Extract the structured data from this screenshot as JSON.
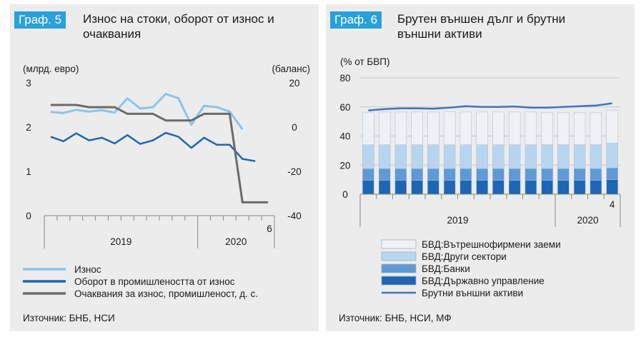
{
  "chart_data": [
    {
      "type": "line",
      "badge": "Граф. 5",
      "title_lines": [
        "Износ на стоки, оборот от износ и",
        "очаквания"
      ],
      "y_left_label": "(млрд. евро)",
      "y_right_label": "(баланс)",
      "y_left_ticks": [
        "3",
        "2",
        "1",
        "0"
      ],
      "y_right_ticks": [
        "20",
        "0",
        "-20",
        "-40"
      ],
      "ylim_left": [
        0,
        3
      ],
      "ylim_right": [
        -40,
        20
      ],
      "x_labels": [
        "2019",
        "2020"
      ],
      "x_last_label": "6",
      "n_periods": 18,
      "series": [
        {
          "name": "Износ",
          "axis": "left",
          "color": "#8cc3ea",
          "values": [
            2.34,
            2.32,
            2.39,
            2.35,
            2.38,
            2.33,
            2.65,
            2.42,
            2.45,
            2.75,
            2.65,
            2.05,
            2.48,
            2.45,
            2.35,
            1.95
          ]
        },
        {
          "name": "Оборот в промишлеността от износ",
          "axis": "left",
          "color": "#1f65b3",
          "values": [
            1.78,
            1.68,
            1.86,
            1.7,
            1.76,
            1.63,
            1.82,
            1.62,
            1.7,
            1.87,
            1.78,
            1.53,
            1.76,
            1.6,
            1.6,
            1.28,
            1.23
          ]
        },
        {
          "name": "Очаквания за износ, промишленост, д. с.",
          "axis": "right",
          "color": "#6b6b6b",
          "values": [
            10,
            10,
            10,
            9,
            9,
            9,
            6,
            6,
            6,
            3,
            3,
            3,
            6,
            6,
            6,
            -34,
            -34,
            -34
          ]
        }
      ],
      "source": "Източник: БНБ, НСИ"
    },
    {
      "type": "bar",
      "stacked": true,
      "badge": "Граф. 6",
      "title_lines": [
        "Брутен външен дълг и брутни",
        "външни активи"
      ],
      "y_label": "(% от БВП)",
      "y_ticks": [
        "80",
        "60",
        "40",
        "20",
        "0"
      ],
      "ylim": [
        0,
        80
      ],
      "x_labels": [
        "2019",
        "2020"
      ],
      "x_last_label": "4",
      "n_periods": 16,
      "series": [
        {
          "name": "БВД:Вътрешнофирмени заеми",
          "color": "#eef2f7",
          "values": [
            22,
            22.5,
            22.5,
            22.5,
            22.5,
            22.8,
            22.5,
            22.5,
            22.5,
            22.5,
            22.5,
            22,
            22,
            22,
            22,
            22.5
          ]
        },
        {
          "name": "БВД:Други сектори",
          "color": "#b8d5f0",
          "values": [
            16.5,
            16.5,
            16.5,
            16.5,
            16.5,
            16.5,
            16.5,
            16.5,
            16.5,
            16.5,
            16.5,
            16.5,
            16.5,
            16.5,
            16.5,
            17
          ]
        },
        {
          "name": "БВД:Банки",
          "color": "#5d9ad6",
          "values": [
            8,
            8,
            8,
            8,
            8,
            8,
            8,
            8,
            8,
            8,
            8,
            8,
            8,
            8,
            8,
            8
          ]
        },
        {
          "name": "БВД:Държавно управление",
          "color": "#1f65b3",
          "values": [
            9.5,
            9.5,
            9.5,
            9.5,
            9.5,
            9.5,
            9.5,
            9.5,
            9.5,
            9.5,
            9.5,
            9.5,
            9.5,
            9.5,
            9.5,
            10
          ]
        }
      ],
      "line_series": {
        "name": "Брутни външни активи",
        "color": "#3a74c6",
        "values": [
          57.5,
          58.5,
          59,
          59,
          58.8,
          59.5,
          60.5,
          60,
          60,
          60.3,
          59.5,
          59.5,
          60,
          60.5,
          61,
          62.5
        ]
      },
      "source": "Източник: БНБ, НСИ, МФ"
    }
  ]
}
